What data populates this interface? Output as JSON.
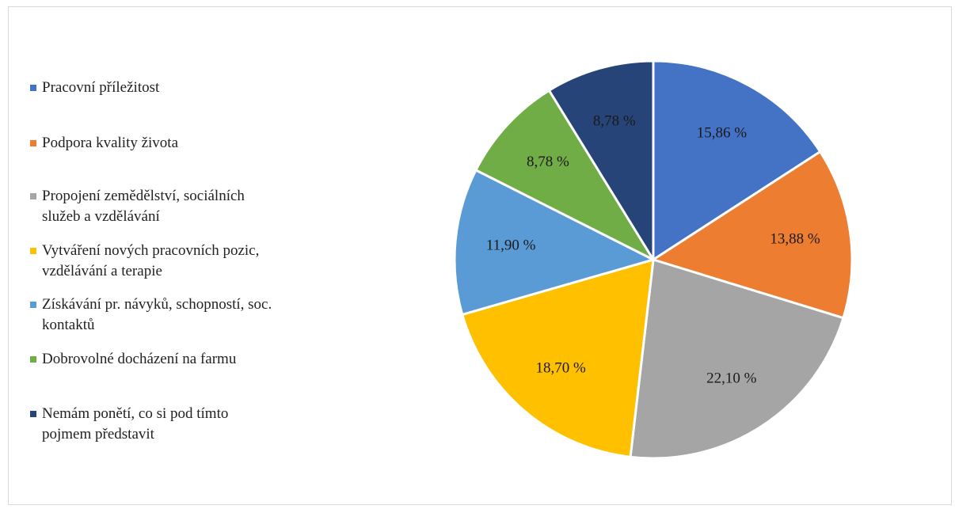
{
  "chart_data": {
    "type": "pie",
    "title": "",
    "categories": [
      "Pracovní příležitost",
      "Podpora kvality života",
      "Propojení zemědělství, sociálních služeb a vzdělávání",
      "Vytváření nových pracovních pozic, vzdělávání a terapie",
      "Získávání pr. návyků, schopností, soc. kontaktů",
      "Dobrovolné docházení na farmu",
      "Nemám ponětí, co si pod tímto pojmem představit"
    ],
    "values": [
      15.86,
      13.88,
      22.1,
      18.7,
      11.9,
      8.78,
      8.78
    ],
    "labels": [
      "15,86 %",
      "13,88 %",
      "22,10 %",
      "18,70 %",
      "11,90 %",
      "8,78 %",
      "8,78 %"
    ],
    "colors": [
      "#4472C4",
      "#ED7D31",
      "#A5A5A5",
      "#FFC000",
      "#5B9BD5",
      "#70AD47",
      "#264478"
    ],
    "legend_position": "left",
    "legend_lines": [
      "Pracovní příležitost",
      "Podpora kvality života",
      "Propojení zemědělství, sociálních\nslužeb a vzdělávání",
      "Vytváření nových pracovních pozic,\nvzdělávání a terapie",
      "Získávání pr. návyků, schopností, soc.\nkontaktů",
      "Dobrovolné docházení na farmu",
      "Nemám ponětí, co si pod tímto\npojmem představit"
    ]
  }
}
